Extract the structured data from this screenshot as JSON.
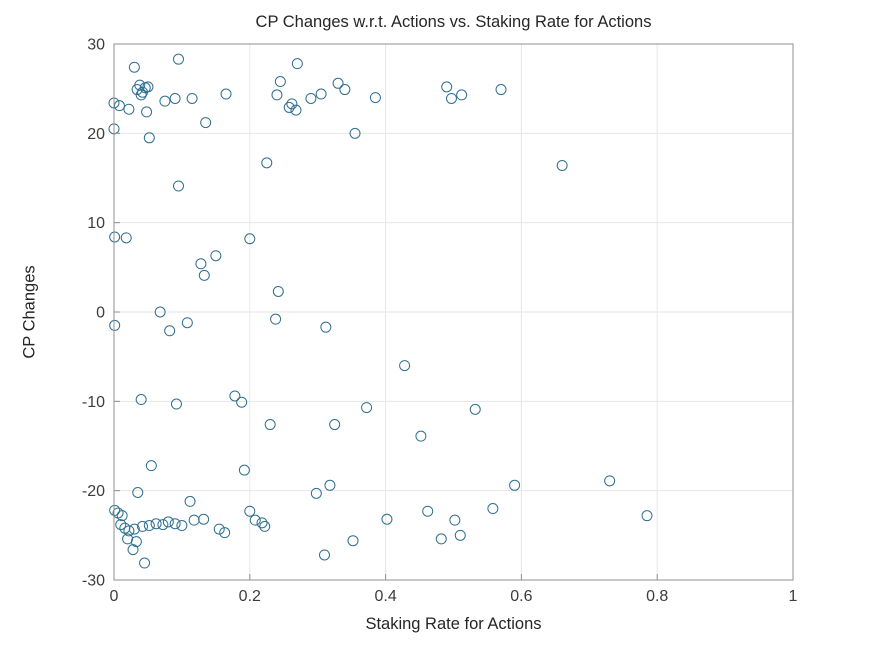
{
  "chart_data": {
    "type": "scatter",
    "title": "CP Changes w.r.t. Actions vs. Staking Rate for Actions",
    "xlabel": "Staking Rate for Actions",
    "ylabel": "CP Changes",
    "xlim": [
      0,
      1
    ],
    "ylim": [
      -30,
      30
    ],
    "xticks": [
      0,
      0.2,
      0.4,
      0.6,
      0.8,
      1
    ],
    "yticks": [
      -30,
      -20,
      -10,
      0,
      10,
      20,
      30
    ],
    "grid": true,
    "legend": null,
    "marker": {
      "shape": "circle",
      "edge_color": "#2f6f8f",
      "fill": "none",
      "radius": 5
    },
    "colors": {
      "axis_box": "#909090",
      "grid": "#e6e6e6",
      "tick_label": "#3d3d3d",
      "background": "#ffffff"
    },
    "points": [
      [
        0.0,
        23.4
      ],
      [
        0.008,
        23.1
      ],
      [
        0.022,
        22.7
      ],
      [
        0.03,
        27.4
      ],
      [
        0.034,
        24.9
      ],
      [
        0.038,
        25.4
      ],
      [
        0.042,
        24.6
      ],
      [
        0.046,
        25.1
      ],
      [
        0.05,
        25.2
      ],
      [
        0.04,
        24.3
      ],
      [
        0.048,
        22.4
      ],
      [
        0.0,
        20.5
      ],
      [
        0.052,
        19.5
      ],
      [
        0.095,
        28.3
      ],
      [
        0.075,
        23.6
      ],
      [
        0.09,
        23.9
      ],
      [
        0.115,
        23.9
      ],
      [
        0.095,
        14.1
      ],
      [
        0.135,
        21.2
      ],
      [
        0.165,
        24.4
      ],
      [
        0.24,
        24.3
      ],
      [
        0.245,
        25.8
      ],
      [
        0.258,
        22.9
      ],
      [
        0.262,
        23.3
      ],
      [
        0.268,
        22.6
      ],
      [
        0.27,
        27.8
      ],
      [
        0.29,
        23.9
      ],
      [
        0.305,
        24.4
      ],
      [
        0.33,
        25.6
      ],
      [
        0.34,
        24.9
      ],
      [
        0.355,
        20.0
      ],
      [
        0.385,
        24.0
      ],
      [
        0.49,
        25.2
      ],
      [
        0.497,
        23.9
      ],
      [
        0.512,
        24.3
      ],
      [
        0.57,
        24.9
      ],
      [
        0.66,
        16.4
      ],
      [
        0.225,
        16.7
      ],
      [
        0.001,
        8.4
      ],
      [
        0.018,
        8.3
      ],
      [
        0.2,
        8.2
      ],
      [
        0.15,
        6.3
      ],
      [
        0.128,
        5.4
      ],
      [
        0.133,
        4.1
      ],
      [
        0.242,
        2.3
      ],
      [
        0.068,
        0.0
      ],
      [
        0.108,
        -1.2
      ],
      [
        0.238,
        -0.8
      ],
      [
        0.001,
        -1.5
      ],
      [
        0.082,
        -2.1
      ],
      [
        0.312,
        -1.7
      ],
      [
        0.428,
        -6.0
      ],
      [
        0.04,
        -9.8
      ],
      [
        0.092,
        -10.3
      ],
      [
        0.178,
        -9.4
      ],
      [
        0.188,
        -10.1
      ],
      [
        0.372,
        -10.7
      ],
      [
        0.532,
        -10.9
      ],
      [
        0.23,
        -12.6
      ],
      [
        0.325,
        -12.6
      ],
      [
        0.452,
        -13.9
      ],
      [
        0.055,
        -17.2
      ],
      [
        0.192,
        -17.7
      ],
      [
        0.73,
        -18.9
      ],
      [
        0.59,
        -19.4
      ],
      [
        0.298,
        -20.3
      ],
      [
        0.318,
        -19.4
      ],
      [
        0.035,
        -20.2
      ],
      [
        0.112,
        -21.2
      ],
      [
        0.001,
        -22.2
      ],
      [
        0.006,
        -22.5
      ],
      [
        0.012,
        -22.8
      ],
      [
        0.01,
        -23.8
      ],
      [
        0.016,
        -24.2
      ],
      [
        0.022,
        -24.5
      ],
      [
        0.03,
        -24.3
      ],
      [
        0.02,
        -25.4
      ],
      [
        0.033,
        -25.7
      ],
      [
        0.028,
        -26.6
      ],
      [
        0.045,
        -28.1
      ],
      [
        0.042,
        -24.0
      ],
      [
        0.052,
        -23.9
      ],
      [
        0.062,
        -23.7
      ],
      [
        0.072,
        -23.8
      ],
      [
        0.08,
        -23.5
      ],
      [
        0.09,
        -23.7
      ],
      [
        0.1,
        -23.9
      ],
      [
        0.118,
        -23.3
      ],
      [
        0.132,
        -23.2
      ],
      [
        0.155,
        -24.3
      ],
      [
        0.163,
        -24.7
      ],
      [
        0.2,
        -22.3
      ],
      [
        0.208,
        -23.3
      ],
      [
        0.218,
        -23.6
      ],
      [
        0.222,
        -24.0
      ],
      [
        0.31,
        -27.2
      ],
      [
        0.352,
        -25.6
      ],
      [
        0.402,
        -23.2
      ],
      [
        0.462,
        -22.3
      ],
      [
        0.482,
        -25.4
      ],
      [
        0.502,
        -23.3
      ],
      [
        0.51,
        -25.0
      ],
      [
        0.558,
        -22.0
      ],
      [
        0.785,
        -22.8
      ]
    ]
  }
}
